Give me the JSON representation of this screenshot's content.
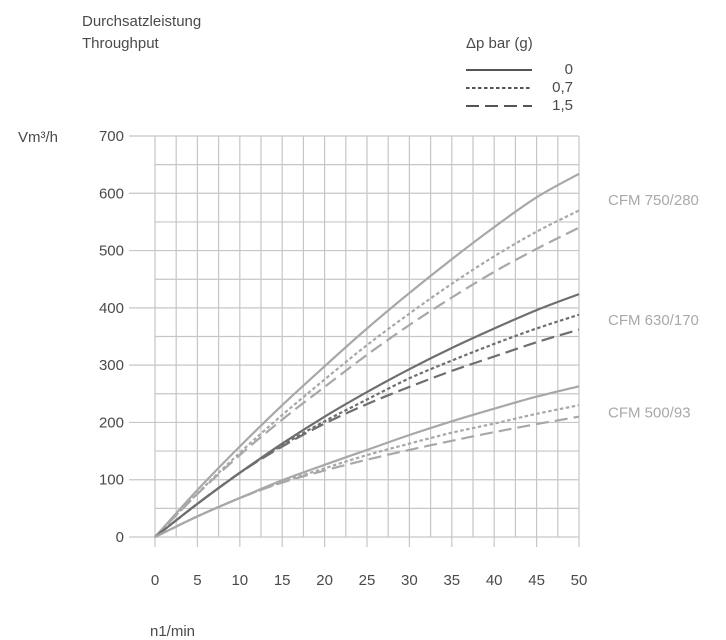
{
  "chart_data": {
    "type": "line",
    "title": "Durchsatzleistung",
    "subtitle": "Throughput",
    "xlabel": "n1/min",
    "ylabel": "Vm³/h",
    "xlim": [
      0,
      50
    ],
    "ylim": [
      0,
      700
    ],
    "x_ticks": [
      0,
      5,
      10,
      15,
      20,
      25,
      30,
      35,
      40,
      45,
      50
    ],
    "y_ticks": [
      0,
      100,
      200,
      300,
      400,
      500,
      600,
      700
    ],
    "grid": true,
    "legend": {
      "title": "Δp bar (g)",
      "placement": "top-right",
      "entries": [
        {
          "label": "0",
          "style": "solid"
        },
        {
          "label": "0,7",
          "style": "dotted"
        },
        {
          "label": "1,5",
          "style": "dashed"
        }
      ]
    },
    "x": [
      0,
      5,
      10,
      15,
      20,
      25,
      30,
      35,
      40,
      45,
      50
    ],
    "groups": [
      {
        "label": "CFM 750/280",
        "color": "#a8a8a8",
        "series": [
          {
            "pressure": "0",
            "style": "solid",
            "values": [
              0,
              82,
              158,
              230,
              298,
              364,
              426,
              485,
              541,
              593,
              634
            ]
          },
          {
            "pressure": "0,7",
            "style": "dotted",
            "values": [
              0,
              76,
              147,
              213,
              275,
              335,
              390,
              442,
              490,
              533,
              570
            ]
          },
          {
            "pressure": "1,5",
            "style": "dashed",
            "values": [
              0,
              75,
              143,
              205,
              262,
              318,
              370,
              418,
              463,
              503,
              540
            ]
          }
        ]
      },
      {
        "label": "CFM 630/170",
        "color": "#6e6e6e",
        "series": [
          {
            "pressure": "0",
            "style": "solid",
            "values": [
              0,
              58,
              112,
              163,
              210,
              253,
              293,
              330,
              364,
              396,
              424
            ]
          },
          {
            "pressure": "0,7",
            "style": "dotted",
            "values": [
              0,
              58,
              112,
              160,
              202,
              240,
              277,
              308,
              337,
              364,
              388
            ]
          },
          {
            "pressure": "1,5",
            "style": "dashed",
            "values": [
              0,
              58,
              112,
              158,
              198,
              232,
              262,
              290,
              315,
              340,
              362
            ]
          }
        ]
      },
      {
        "label": "CFM 500/93",
        "color": "#a8a8a8",
        "series": [
          {
            "pressure": "0",
            "style": "solid",
            "values": [
              0,
              36,
              68,
              99,
              126,
              152,
              178,
              202,
              224,
              245,
              263
            ]
          },
          {
            "pressure": "0,7",
            "style": "dotted",
            "values": [
              0,
              36,
              68,
              96,
              120,
              143,
              163,
              182,
              198,
              215,
              230
            ]
          },
          {
            "pressure": "1,5",
            "style": "dashed",
            "values": [
              0,
              36,
              68,
              95,
              116,
              135,
              152,
              168,
              183,
              197,
              210
            ]
          }
        ]
      }
    ]
  }
}
